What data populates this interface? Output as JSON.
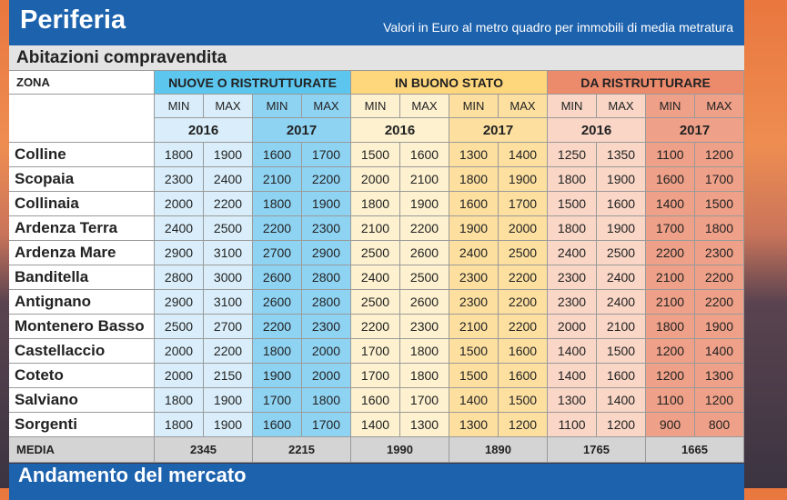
{
  "header": {
    "title": "Periferia",
    "subtitle": "Valori in Euro al metro quadro per immobili di media metratura"
  },
  "section_title": "Abitazioni compravendita",
  "table": {
    "zona_label": "ZONA",
    "groups": [
      "NUOVE O RISTRUTTURATE",
      "IN BUONO STATO",
      "DA RISTRUTTURARE"
    ],
    "subheaders": [
      "MIN",
      "MAX",
      "MIN",
      "MAX",
      "MIN",
      "MAX",
      "MIN",
      "MAX",
      "MIN",
      "MAX",
      "MIN",
      "MAX"
    ],
    "years": [
      "2016",
      "2017",
      "2016",
      "2017",
      "2016",
      "2017"
    ],
    "rows": [
      [
        "Colline",
        1800,
        1900,
        1600,
        1700,
        1500,
        1600,
        1300,
        1400,
        1250,
        1350,
        1100,
        1200
      ],
      [
        "Scopaia",
        2300,
        2400,
        2100,
        2200,
        2000,
        2100,
        1800,
        1900,
        1800,
        1900,
        1600,
        1700
      ],
      [
        "Collinaia",
        2000,
        2200,
        1800,
        1900,
        1800,
        1900,
        1600,
        1700,
        1500,
        1600,
        1400,
        1500
      ],
      [
        "Ardenza Terra",
        2400,
        2500,
        2200,
        2300,
        2100,
        2200,
        1900,
        2000,
        1800,
        1900,
        1700,
        1800
      ],
      [
        "Ardenza Mare",
        2900,
        3100,
        2700,
        2900,
        2500,
        2600,
        2400,
        2500,
        2400,
        2500,
        2200,
        2300
      ],
      [
        "Banditella",
        2800,
        3000,
        2600,
        2800,
        2400,
        2500,
        2300,
        2200,
        2300,
        2400,
        2100,
        2200
      ],
      [
        "Antignano",
        2900,
        3100,
        2600,
        2800,
        2500,
        2600,
        2300,
        2200,
        2300,
        2400,
        2100,
        2200
      ],
      [
        "Montenero Basso",
        2500,
        2700,
        2200,
        2300,
        2200,
        2300,
        2100,
        2200,
        2000,
        2100,
        1800,
        1900
      ],
      [
        "Castellaccio",
        2000,
        2200,
        1800,
        2000,
        1700,
        1800,
        1500,
        1600,
        1400,
        1500,
        1200,
        1400
      ],
      [
        "Coteto",
        2000,
        2150,
        1900,
        2000,
        1700,
        1800,
        1500,
        1600,
        1400,
        1600,
        1200,
        1300
      ],
      [
        "Salviano",
        1800,
        1900,
        1700,
        1800,
        1600,
        1700,
        1400,
        1500,
        1300,
        1400,
        1100,
        1200
      ],
      [
        "Sorgenti",
        1800,
        1900,
        1600,
        1700,
        1400,
        1300,
        1300,
        1200,
        1100,
        1200,
        900,
        800
      ]
    ],
    "media": {
      "label": "MEDIA",
      "values": [
        2345,
        2215,
        1990,
        1890,
        1765,
        1665
      ]
    }
  },
  "next_section_title": "Andamento del mercato"
}
